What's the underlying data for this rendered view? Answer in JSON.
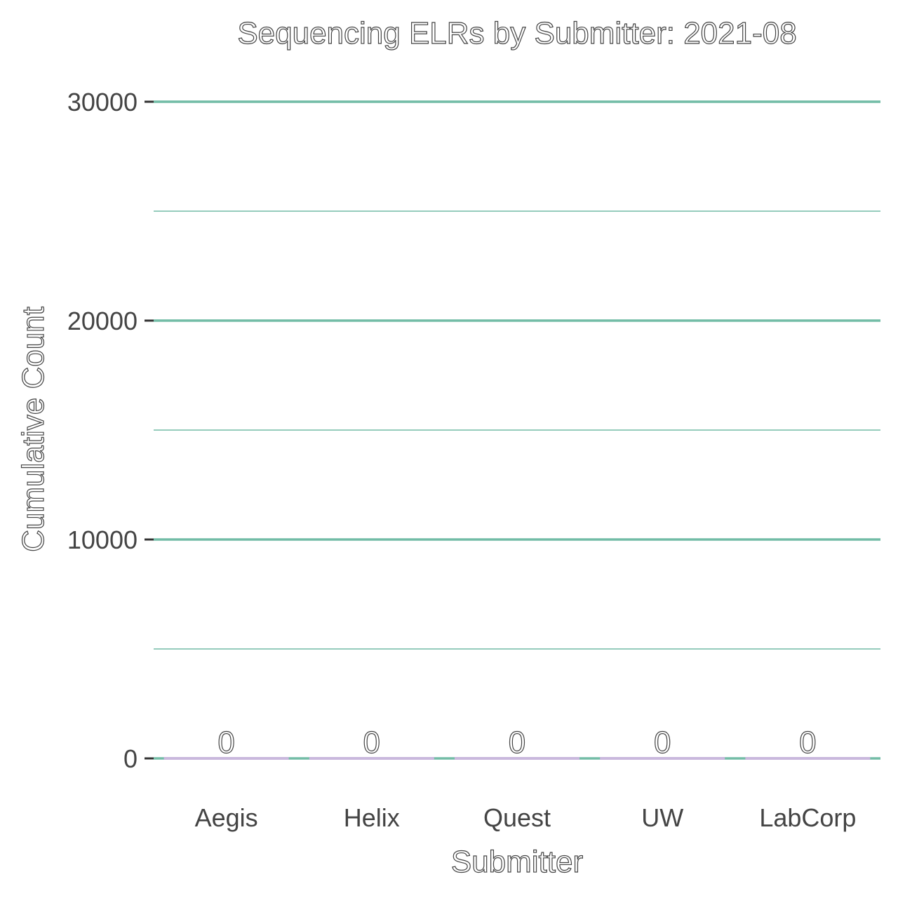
{
  "chart_data": {
    "type": "bar",
    "title": "Sequencing ELRs by Submitter: 2021-08",
    "xlabel": "Submitter",
    "ylabel": "Cumulative Count",
    "categories": [
      "Aegis",
      "Helix",
      "Quest",
      "UW",
      "LabCorp"
    ],
    "values": [
      0,
      0,
      0,
      0,
      0
    ],
    "data_labels": [
      "0",
      "0",
      "0",
      "0",
      "0"
    ],
    "ylim": [
      0,
      30000
    ],
    "yticks": [
      0,
      10000,
      20000,
      30000
    ],
    "ytick_labels": [
      "0",
      "10000",
      "20000",
      "30000"
    ],
    "minor_gridlines": [
      5000,
      15000,
      25000
    ],
    "grid": true,
    "legend": "none",
    "colors": {
      "gridline": "#72bca6",
      "bar": "#c9b8dd",
      "tick_text": "#444444",
      "background": "#ffffff"
    }
  }
}
